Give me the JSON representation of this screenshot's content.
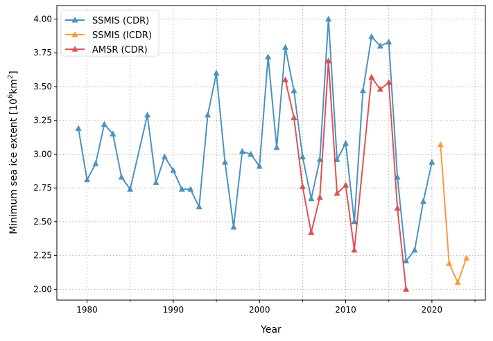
{
  "chart_data": {
    "type": "line",
    "title": "",
    "xlabel": "Year",
    "ylabel": "Minimum sea ice extent [10^6 km^2]",
    "ylabel_parts": {
      "pre": "Minimum sea ice extent [10",
      "sup1": "6",
      "mid": "km",
      "sup2": "2",
      "post": "]"
    },
    "xlim": [
      1976.5,
      2026.2
    ],
    "ylim": [
      1.92,
      4.1
    ],
    "xticks": [
      1980,
      1990,
      2000,
      2010,
      2020
    ],
    "yticks": [
      2.0,
      2.25,
      2.5,
      2.75,
      3.0,
      3.25,
      3.5,
      3.75,
      4.0
    ],
    "grid": true,
    "legend": "top-left",
    "series": [
      {
        "name": "SSMIS (CDR)",
        "color": "#1f77b4",
        "x": [
          1979,
          1980,
          1981,
          1982,
          1983,
          1984,
          1985,
          1987,
          1988,
          1989,
          1990,
          1991,
          1992,
          1993,
          1994,
          1995,
          1996,
          1997,
          1998,
          1999,
          2000,
          2001,
          2002,
          2003,
          2004,
          2005,
          2006,
          2007,
          2008,
          2009,
          2010,
          2011,
          2012,
          2013,
          2014,
          2015,
          2016,
          2017,
          2018,
          2019,
          2020
        ],
        "values": [
          3.19,
          2.81,
          2.93,
          3.22,
          3.15,
          2.83,
          2.74,
          3.29,
          2.79,
          2.98,
          2.88,
          2.74,
          2.74,
          2.61,
          3.29,
          3.6,
          2.94,
          2.46,
          3.02,
          3.0,
          2.91,
          3.72,
          3.05,
          3.79,
          3.47,
          2.98,
          2.67,
          2.96,
          4.0,
          2.96,
          3.08,
          2.5,
          3.47,
          3.87,
          3.8,
          3.83,
          2.83,
          2.21,
          2.29,
          2.65,
          2.94
        ]
      },
      {
        "name": "SSMIS (ICDR)",
        "color": "#ff7f0e",
        "x": [
          2021,
          2022,
          2023,
          2024
        ],
        "values": [
          3.07,
          2.19,
          2.05,
          2.23
        ]
      },
      {
        "name": "AMSR (CDR)",
        "color": "#d62728",
        "x": [
          2003,
          2004,
          2005,
          2006,
          2007,
          2008,
          2009,
          2010,
          2011,
          2013,
          2014,
          2015,
          2016,
          2017
        ],
        "values": [
          3.55,
          3.27,
          2.76,
          2.42,
          2.68,
          3.69,
          2.71,
          2.77,
          2.29,
          3.57,
          3.48,
          3.53,
          2.6,
          2.0
        ]
      }
    ]
  }
}
